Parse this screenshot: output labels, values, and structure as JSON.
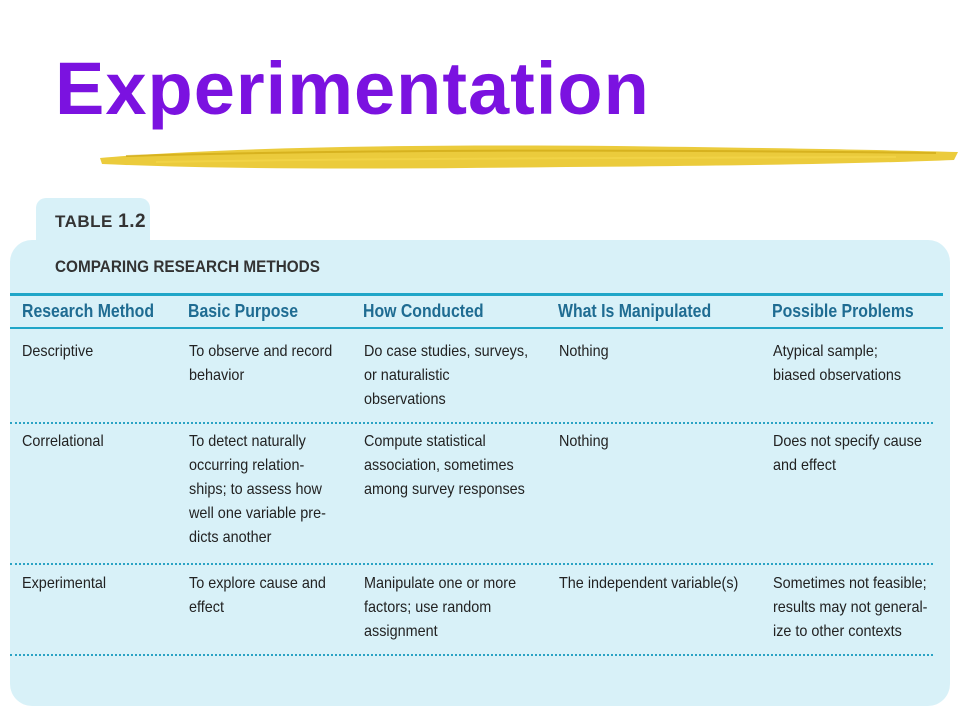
{
  "slide": {
    "title": "Experimentation"
  },
  "table": {
    "tab_prefix": "TABLE",
    "tab_number": "1.2",
    "heading": "COMPARING RESEARCH METHODS",
    "columns": [
      "Research Method",
      "Basic Purpose",
      "How Conducted",
      "What Is Manipulated",
      "Possible Problems"
    ],
    "rows": [
      [
        "Descriptive",
        "To observe and record\nbehavior",
        "Do case studies, surveys,\nor naturalistic\nobservations",
        "Nothing",
        "Atypical sample;\nbiased observations"
      ],
      [
        "Correlational",
        "To detect naturally\noccurring relation-\nships; to assess how\nwell one variable pre-\ndicts another",
        "Compute statistical\nassociation, sometimes\namong survey responses",
        "Nothing",
        "Does not specify cause\nand effect"
      ],
      [
        "Experimental",
        "To explore cause and\neffect",
        "Manipulate one or more\nfactors; use random\nassignment",
        "The independent variable(s)",
        "Sometimes not feasible;\nresults may not general-\nize to other contexts"
      ]
    ]
  },
  "colors": {
    "title": "#7b12e0",
    "panel": "#d8f1f8",
    "header_text": "#1f6c92",
    "rule": "#1fa6c8",
    "highlight_stroke": "#e8c21a"
  }
}
